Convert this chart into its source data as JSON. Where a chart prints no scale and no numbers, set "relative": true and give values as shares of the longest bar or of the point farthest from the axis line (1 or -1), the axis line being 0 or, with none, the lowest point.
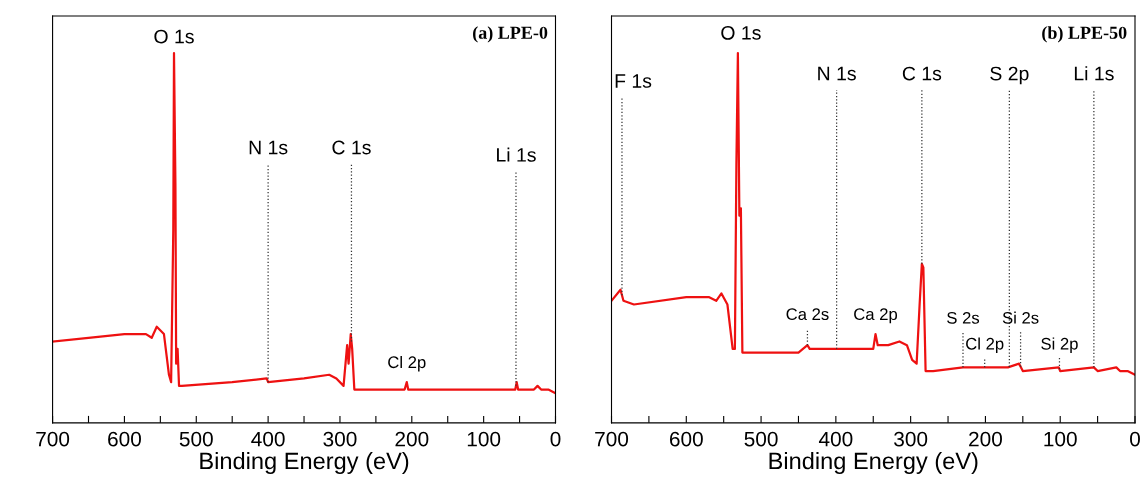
{
  "chart_data": [
    {
      "type": "line",
      "title": "(a) LPE-0",
      "xlabel": "Binding Energy (eV)",
      "relative": true,
      "tick_labels": "x",
      "grid": false,
      "marker": "none",
      "line_style": "solid",
      "xlim": [
        700,
        0
      ],
      "xticks": [
        700,
        {
          "value": 650,
          "label": null
        },
        600,
        {
          "value": 550,
          "label": null
        },
        500,
        {
          "value": 450,
          "label": null
        },
        400,
        {
          "value": 350,
          "label": null
        },
        300,
        {
          "value": 250,
          "label": null
        },
        200,
        {
          "value": 150,
          "label": null
        },
        100,
        {
          "value": 50,
          "label": null
        },
        0
      ],
      "series": [
        {
          "color": "#ee1111",
          "x": [
            700,
            650,
            600,
            570,
            562,
            555,
            545,
            538,
            535,
            532,
            531,
            529,
            528,
            526,
            524,
            520,
            450,
            402,
            400,
            350,
            315,
            305,
            295,
            290,
            288,
            285,
            283,
            280,
            270,
            210,
            207,
            205,
            100,
            56,
            54,
            52,
            30,
            25,
            20,
            10,
            0
          ],
          "values": [
            0.22,
            0.23,
            0.24,
            0.24,
            0.23,
            0.26,
            0.24,
            0.13,
            0.11,
            0.52,
            1.0,
            0.64,
            0.16,
            0.2,
            0.1,
            0.1,
            0.11,
            0.12,
            0.11,
            0.12,
            0.13,
            0.12,
            0.1,
            0.21,
            0.16,
            0.24,
            0.2,
            0.09,
            0.09,
            0.09,
            0.11,
            0.09,
            0.09,
            0.09,
            0.11,
            0.09,
            0.09,
            0.1,
            0.09,
            0.09,
            0.08
          ]
        }
      ],
      "ref_lines": [
        {
          "axis": "x",
          "value": 400,
          "label": "N 1s",
          "line_style": "dotted",
          "color": "#333333"
        },
        {
          "axis": "x",
          "value": 284,
          "label": "C 1s",
          "line_style": "dotted",
          "color": "#333333"
        },
        {
          "axis": "x",
          "value": 55,
          "label": "Li 1s",
          "line_style": "dotted",
          "color": "#333333"
        }
      ],
      "annotations": [
        "O 1s",
        "Cl 2p"
      ]
    },
    {
      "type": "line",
      "title": "(b) LPE-50",
      "xlabel": "Binding Energy (eV)",
      "relative": true,
      "tick_labels": "x",
      "grid": false,
      "marker": "none",
      "line_style": "solid",
      "xlim": [
        700,
        0
      ],
      "xticks": [
        700,
        {
          "value": 650,
          "label": null
        },
        600,
        {
          "value": 550,
          "label": null
        },
        500,
        {
          "value": 450,
          "label": null
        },
        400,
        {
          "value": 350,
          "label": null
        },
        300,
        {
          "value": 250,
          "label": null
        },
        200,
        {
          "value": 150,
          "label": null
        },
        100,
        {
          "value": 50,
          "label": null
        },
        0
      ],
      "series": [
        {
          "color": "#ee1111",
          "x": [
            700,
            688,
            684,
            670,
            600,
            570,
            560,
            553,
            545,
            538,
            535,
            533,
            531,
            529,
            527,
            525,
            520,
            450,
            438,
            435,
            400,
            398,
            350,
            347,
            344,
            330,
            315,
            305,
            298,
            292,
            288,
            285,
            283,
            280,
            270,
            230,
            200,
            170,
            155,
            150,
            102,
            100,
            55,
            50,
            25,
            20,
            10,
            0
          ],
          "values": [
            0.33,
            0.36,
            0.33,
            0.32,
            0.34,
            0.34,
            0.33,
            0.35,
            0.32,
            0.2,
            0.2,
            0.7,
            1.0,
            0.56,
            0.58,
            0.19,
            0.19,
            0.19,
            0.21,
            0.2,
            0.2,
            0.2,
            0.2,
            0.24,
            0.21,
            0.21,
            0.22,
            0.21,
            0.17,
            0.16,
            0.32,
            0.43,
            0.42,
            0.14,
            0.14,
            0.15,
            0.15,
            0.15,
            0.16,
            0.14,
            0.15,
            0.14,
            0.15,
            0.14,
            0.15,
            0.14,
            0.14,
            0.13
          ]
        }
      ],
      "ref_lines": [
        {
          "axis": "x",
          "value": 686,
          "label": "F 1s",
          "line_style": "dotted",
          "color": "#333333"
        },
        {
          "axis": "x",
          "value": 399,
          "label": "N 1s",
          "line_style": "dotted",
          "color": "#333333"
        },
        {
          "axis": "x",
          "value": 285,
          "label": "C 1s",
          "line_style": "dotted",
          "color": "#333333"
        },
        {
          "axis": "x",
          "value": 168,
          "label": "S 2p",
          "line_style": "dotted",
          "color": "#333333"
        },
        {
          "axis": "x",
          "value": 55,
          "label": "Li 1s",
          "line_style": "dotted",
          "color": "#333333"
        },
        {
          "axis": "x",
          "value": 438,
          "label": "Ca 2s",
          "line_style": "dotted",
          "color": "#333333"
        },
        {
          "axis": "x",
          "value": 230,
          "label": "S 2s",
          "line_style": "dotted",
          "color": "#333333"
        },
        {
          "axis": "x",
          "value": 201,
          "label": "Cl 2p",
          "line_style": "dotted",
          "color": "#333333"
        },
        {
          "axis": "x",
          "value": 153,
          "label": "Si 2s",
          "line_style": "dotted",
          "color": "#333333"
        },
        {
          "axis": "x",
          "value": 101,
          "label": "Si 2p",
          "line_style": "dotted",
          "color": "#333333"
        }
      ],
      "annotations": [
        "O 1s",
        "Ca 2p"
      ]
    }
  ]
}
